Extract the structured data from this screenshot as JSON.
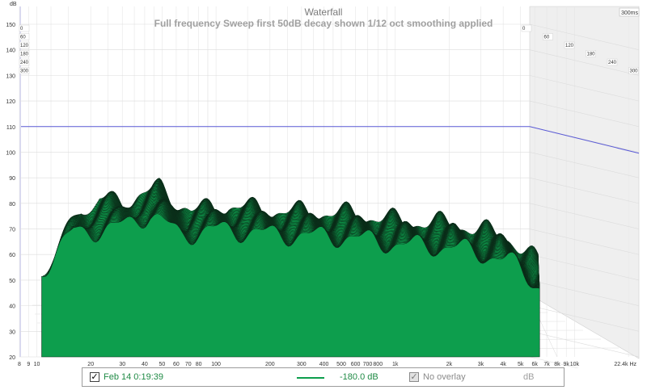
{
  "chart_data": {
    "type": "waterfall",
    "title": "Waterfall",
    "subtitle": "Full frequency Sweep first 50dB decay shown 1/12 oct smoothing applied",
    "y_unit": "dB",
    "x_unit": "Hz",
    "z_unit_label": "300ms",
    "y_ticks": [
      150,
      140,
      130,
      120,
      110,
      100,
      90,
      80,
      70,
      60,
      50,
      40,
      30,
      20
    ],
    "x_ticks": [
      "8",
      "9",
      "10",
      "20",
      "30",
      "40",
      "50",
      "60",
      "70",
      "80",
      "100",
      "200",
      "300",
      "400",
      "500",
      "600",
      "700",
      "800",
      "1k",
      "2k",
      "3k",
      "4k",
      "5k",
      "6k",
      "7k",
      "8k",
      "9k",
      "10k",
      "22.4k Hz"
    ],
    "z_ticks_left": [
      "0",
      "60",
      "120",
      "180",
      "240",
      "300"
    ],
    "z_ticks_right": [
      "0",
      "60",
      "120",
      "180",
      "240",
      "300"
    ],
    "reference_level_db": 110,
    "fill_color": "#0d9e4d",
    "reference_line_color": "#5a5ad6",
    "front_slice_peaks": [
      {
        "freq_hz": 10,
        "db": 54
      },
      {
        "freq_hz": 15,
        "db": 69
      },
      {
        "freq_hz": 25,
        "db": 70
      },
      {
        "freq_hz": 40,
        "db": 76
      },
      {
        "freq_hz": 60,
        "db": 68
      },
      {
        "freq_hz": 100,
        "db": 70
      },
      {
        "freq_hz": 200,
        "db": 68
      },
      {
        "freq_hz": 500,
        "db": 67
      },
      {
        "freq_hz": 1000,
        "db": 64
      },
      {
        "freq_hz": 2000,
        "db": 63
      },
      {
        "freq_hz": 4000,
        "db": 58
      },
      {
        "freq_hz": 6000,
        "db": 48
      }
    ]
  },
  "legend": {
    "measurement_label": "Feb 14 0:19:39",
    "level": "-180.0 dB",
    "overlay_label": "No overlay",
    "unit": "dB",
    "measurement_checked": "✓",
    "overlay_checked": "✓"
  }
}
